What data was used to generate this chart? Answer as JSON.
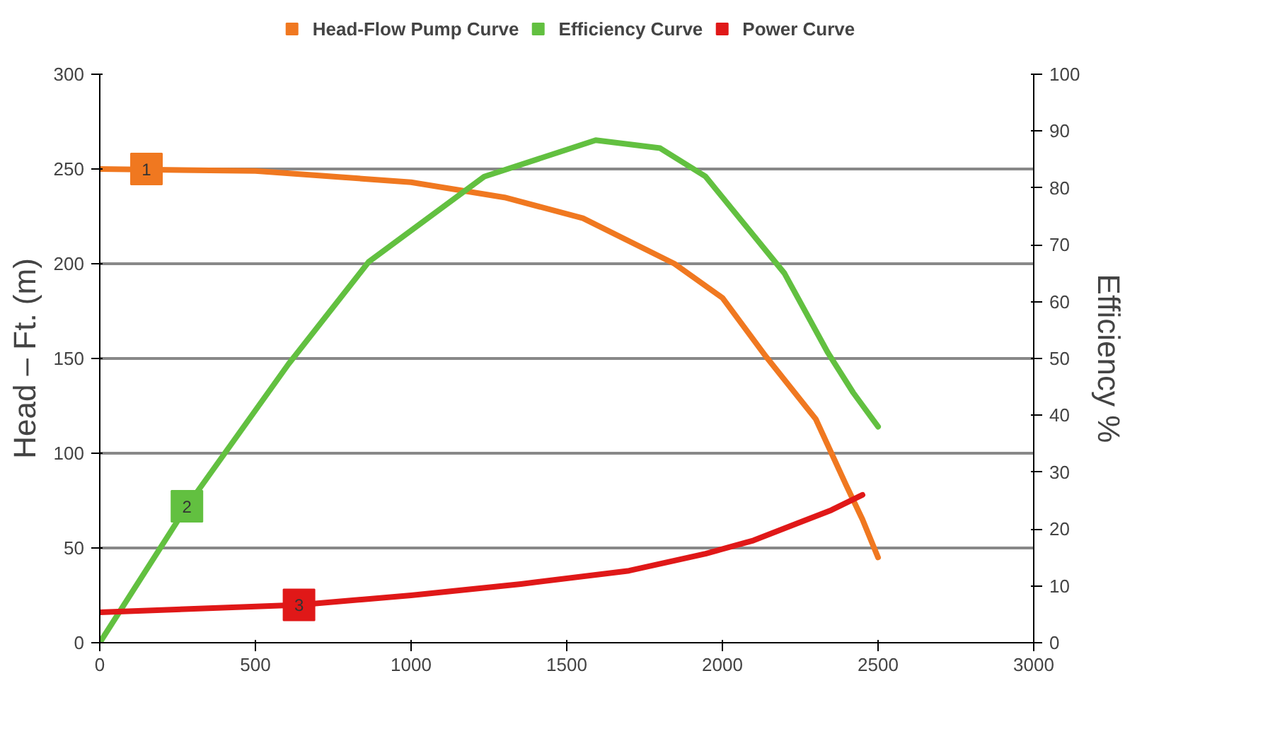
{
  "chart_data": {
    "type": "line",
    "xlabel": null,
    "ylabel": "Head – Ft. (m)",
    "y2label": "Efficiency %",
    "xlim": [
      0,
      3000
    ],
    "xticks": [
      0,
      500,
      1000,
      1500,
      2000,
      2500,
      3000
    ],
    "ylim": [
      0,
      300
    ],
    "yticks": [
      0,
      50,
      100,
      150,
      200,
      250,
      300
    ],
    "y2lim": [
      0,
      100
    ],
    "y2ticks": [
      0,
      10,
      20,
      30,
      40,
      50,
      60,
      70,
      80,
      90,
      100
    ],
    "grid": "y",
    "legend": "top",
    "marker": "none",
    "line_style": "solid",
    "series": [
      {
        "name": "Head-Flow Pump Curve",
        "color": "#f07820",
        "x": [
          0,
          500,
          1000,
          1300,
          1552,
          1846,
          2000,
          2140,
          2300,
          2398,
          2450,
          2500
        ],
        "values": [
          250,
          249,
          243,
          235,
          224,
          200,
          182,
          151,
          118,
          83,
          65,
          45
        ]
      },
      {
        "name": "Efficiency Curve",
        "color": "#62c040",
        "axis": "y2",
        "x": [
          0,
          280,
          606,
          864,
          1235,
          1593,
          1800,
          1946,
          2199,
          2339,
          2420,
          2500
        ],
        "values": [
          0,
          24,
          49,
          67,
          82,
          88.4,
          87,
          82,
          65,
          51,
          44,
          38
        ]
      },
      {
        "name": "Power Curve",
        "color": "#e01818",
        "x": [
          0,
          640,
          1000,
          1353,
          1700,
          1946,
          2100,
          2240,
          2350,
          2450
        ],
        "values": [
          16,
          20,
          25,
          31,
          38,
          47,
          54,
          63,
          70,
          78
        ]
      }
    ],
    "annotations": [
      {
        "text": "1",
        "x": 150,
        "y": 250
      },
      {
        "text": "2",
        "x": 280,
        "y": 72
      },
      {
        "text": "3",
        "x": 640,
        "y": 20
      }
    ]
  }
}
